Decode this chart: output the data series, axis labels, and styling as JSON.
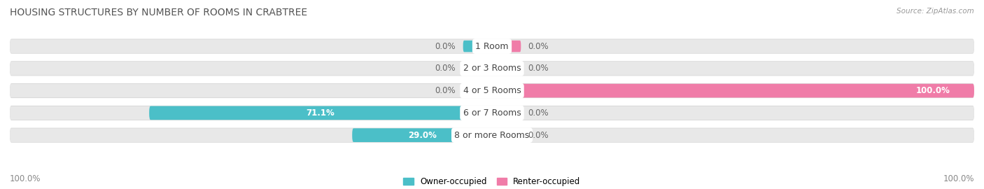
{
  "title": "HOUSING STRUCTURES BY NUMBER OF ROOMS IN CRABTREE",
  "source": "Source: ZipAtlas.com",
  "categories": [
    "1 Room",
    "2 or 3 Rooms",
    "4 or 5 Rooms",
    "6 or 7 Rooms",
    "8 or more Rooms"
  ],
  "owner_values": [
    0.0,
    0.0,
    0.0,
    71.1,
    29.0
  ],
  "renter_values": [
    0.0,
    0.0,
    100.0,
    0.0,
    0.0
  ],
  "owner_color": "#4BBFC8",
  "renter_color": "#F07CA8",
  "bar_bg_color": "#E8E8E8",
  "bar_bg_shadow": "#D0D0D0",
  "bar_height": 0.62,
  "title_fontsize": 10,
  "label_fontsize": 8.5,
  "cat_fontsize": 9,
  "axis_label_fontsize": 8.5,
  "x_left_label": "100.0%",
  "x_right_label": "100.0%",
  "background_color": "#FFFFFF"
}
